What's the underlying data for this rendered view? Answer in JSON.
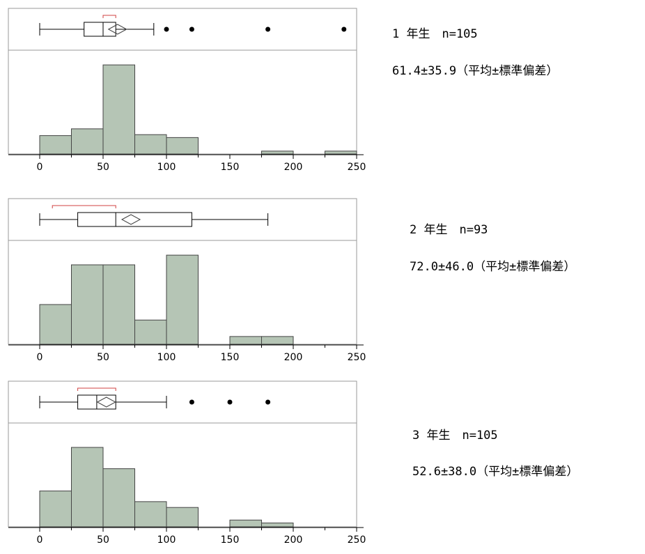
{
  "colors": {
    "bar_fill": "#b5c5b5",
    "bar_stroke": "#444444",
    "bracket": "#d04040",
    "frame": "#999999"
  },
  "chart_data": [
    {
      "type": "histogram",
      "x_ticks": [
        "0",
        "50",
        "100",
        "150",
        "200",
        "250"
      ],
      "xlim": [
        0,
        250
      ],
      "bin_width": 25,
      "bins": [
        0,
        25,
        50,
        75,
        100,
        125,
        150,
        175,
        200,
        225
      ],
      "values": [
        0.19,
        0.26,
        0.92,
        0.2,
        0.17,
        0,
        0,
        0.03,
        0,
        0.03
      ],
      "boxplot": {
        "whisker_low": 0,
        "q1": 35,
        "median": 50,
        "q3": 60,
        "whisker_high": 90,
        "mean": 61.4,
        "outliers": [
          100,
          120,
          180,
          240
        ],
        "shortest_half": [
          50,
          60
        ]
      },
      "label": {
        "group": "1 年生　n=105",
        "stat": "61.4±35.9（平均±標準偏差）"
      }
    },
    {
      "type": "histogram",
      "x_ticks": [
        "0",
        "50",
        "100",
        "150",
        "200",
        "250"
      ],
      "xlim": [
        0,
        250
      ],
      "bin_width": 25,
      "bins": [
        0,
        25,
        50,
        75,
        100,
        125,
        150,
        175,
        200,
        225
      ],
      "values": [
        0.41,
        0.82,
        0.82,
        0.25,
        0.92,
        0,
        0.08,
        0.08,
        0,
        0
      ],
      "boxplot": {
        "whisker_low": 0,
        "q1": 30,
        "median": 60,
        "q3": 120,
        "whisker_high": 180,
        "mean": 72,
        "outliers": [],
        "shortest_half": [
          10,
          60
        ]
      },
      "label": {
        "group": "2 年生　n=93",
        "stat": "72.0±46.0（平均±標準偏差）"
      }
    },
    {
      "type": "histogram",
      "x_ticks": [
        "0",
        "50",
        "100",
        "150",
        "200",
        "250"
      ],
      "xlim": [
        0,
        250
      ],
      "bin_width": 25,
      "bins": [
        0,
        25,
        50,
        75,
        100,
        125,
        150,
        175,
        200,
        225
      ],
      "values": [
        0.37,
        0.82,
        0.6,
        0.26,
        0.2,
        0,
        0.07,
        0.04,
        0,
        0
      ],
      "boxplot": {
        "whisker_low": 0,
        "q1": 30,
        "median": 45,
        "q3": 60,
        "whisker_high": 100,
        "mean": 52.6,
        "outliers": [
          120,
          150,
          180
        ],
        "shortest_half": [
          30,
          60
        ]
      },
      "label": {
        "group": "3 年生　n=105",
        "stat": "52.6±38.0（平均±標準偏差）"
      }
    }
  ]
}
